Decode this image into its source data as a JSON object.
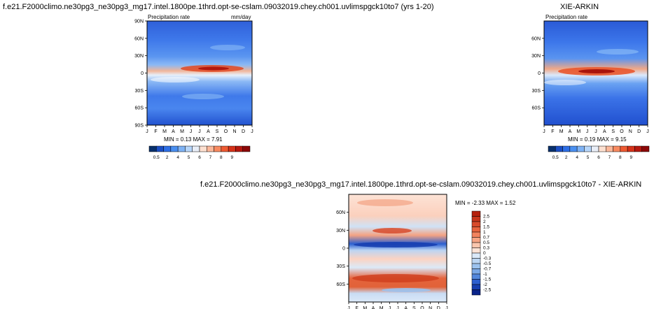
{
  "panels": {
    "model": {
      "title": "f.e21.F2000climo.ne30pg3_ne30pg3_mg17.intel.1800pe.1thrd.opt-se-cslam.09032019.chey.ch001.uvlimspgck10to7 (yrs 1-20)",
      "left_label": "Precipitation rate",
      "right_label": "mm/day",
      "min_max": "MIN =  0.13 MAX =  7.91"
    },
    "obs": {
      "title": "XIE-ARKIN",
      "left_label": "Precipitation rate",
      "min_max": "MIN =  0.19 MAX =  9.15"
    },
    "diff": {
      "title": "f.e21.F2000climo.ne30pg3_ne30pg3_mg17.intel.1800pe.1thrd.opt-se-cslam.09032019.chey.ch001.uvlimspgck10to7 - XIE-ARKIN",
      "min_max": "MIN = -2.33 MAX =  1.52"
    }
  },
  "chart_data": [
    {
      "type": "heatmap",
      "title": "Precipitation rate",
      "units": "mm/day",
      "x_ticks": [
        "J",
        "F",
        "M",
        "A",
        "M",
        "J",
        "J",
        "A",
        "S",
        "O",
        "N",
        "D",
        "J"
      ],
      "y_ticks": [
        "90N",
        "60N",
        "30N",
        "0",
        "30S",
        "60S",
        "90S"
      ],
      "min": 0.13,
      "max": 7.91,
      "colorbar": {
        "levels": [
          "0.5",
          "2",
          "4",
          "5",
          "6",
          "7",
          "8",
          "9"
        ],
        "colors": [
          "#08306b",
          "#1b4fc4",
          "#2e6fe6",
          "#4a8ff0",
          "#7fb3f5",
          "#b7d6fa",
          "#e9eef7",
          "#fde0d0",
          "#fcb89a",
          "#f88a60",
          "#ee5a32",
          "#d63219",
          "#b5180f",
          "#8c0808"
        ]
      }
    },
    {
      "type": "heatmap",
      "title": "Precipitation rate",
      "x_ticks": [
        "J",
        "F",
        "M",
        "A",
        "M",
        "J",
        "J",
        "A",
        "S",
        "O",
        "N",
        "D",
        "J"
      ],
      "y_ticks": [
        "60N",
        "30N",
        "0",
        "30S",
        "60S"
      ],
      "min": 0.19,
      "max": 9.15,
      "colorbar": {
        "levels": [
          "0.5",
          "2",
          "4",
          "5",
          "6",
          "7",
          "8",
          "9"
        ],
        "colors": [
          "#08306b",
          "#1b4fc4",
          "#2e6fe6",
          "#4a8ff0",
          "#7fb3f5",
          "#b7d6fa",
          "#e9eef7",
          "#fde0d0",
          "#fcb89a",
          "#f88a60",
          "#ee5a32",
          "#d63219",
          "#b5180f",
          "#8c0808"
        ]
      }
    },
    {
      "type": "heatmap",
      "title": "",
      "x_ticks": [
        "J",
        "F",
        "M",
        "A",
        "M",
        "J",
        "J",
        "A",
        "S",
        "O",
        "N",
        "D",
        "J"
      ],
      "y_ticks": [
        "60N",
        "30N",
        "0",
        "30S",
        "60S"
      ],
      "min": -2.33,
      "max": 1.52,
      "colorbar": {
        "levels": [
          "2.5",
          "2",
          "1.5",
          "1",
          "0.7",
          "0.5",
          "0.3",
          "0",
          "-0.3",
          "-0.5",
          "-0.7",
          "-1",
          "-1.5",
          "-2",
          "-2.5"
        ],
        "colors": [
          "#b5200c",
          "#c7351a",
          "#d84a2a",
          "#e8643e",
          "#f2835e",
          "#f7a584",
          "#fbc6ad",
          "#fde3d6",
          "#dbe9f8",
          "#bcd6f3",
          "#9cc2ee",
          "#7aa8e6",
          "#5287dc",
          "#2d5fcf",
          "#173fb0",
          "#0a238a"
        ]
      }
    }
  ]
}
